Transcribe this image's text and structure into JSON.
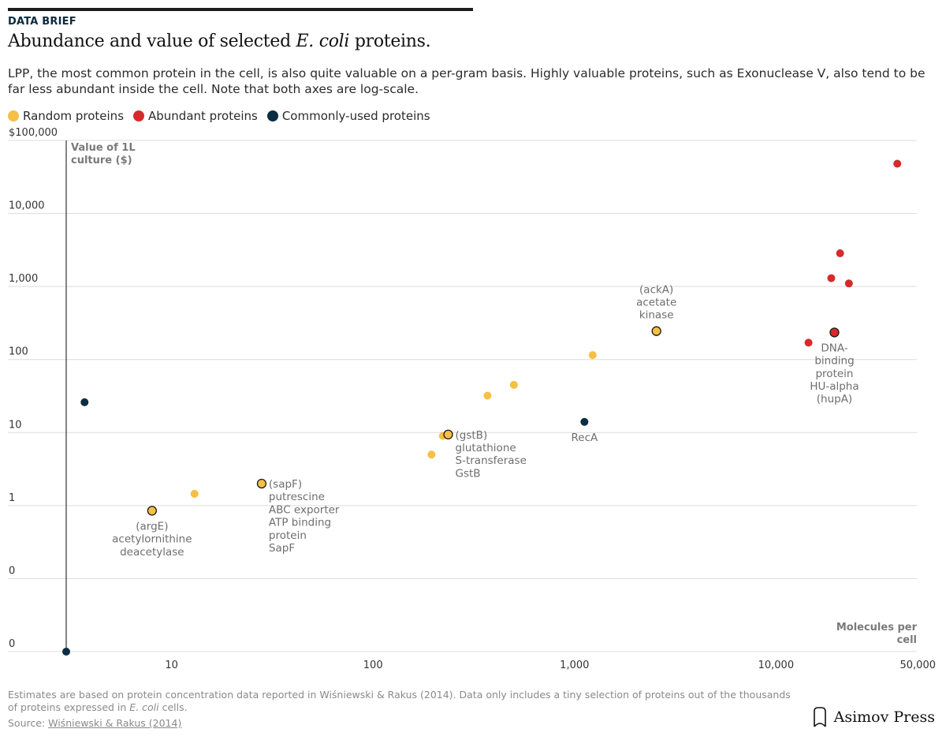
{
  "header": {
    "kicker": "DATA BRIEF",
    "title_pre": "Abundance and value of selected ",
    "title_em": "E. coli",
    "title_post": " proteins.",
    "subtitle": "LPP, the most common protein in the cell, is also quite valuable on a per-gram basis. Highly valuable proteins, such as Exonuclease V, also tend to be far less abundant inside the cell. Note that both axes are log-scale."
  },
  "legend": [
    {
      "label": "Random proteins",
      "color": "#f6bf45"
    },
    {
      "label": "Abundant proteins",
      "color": "#d62b2b"
    },
    {
      "label": "Commonly-used proteins",
      "color": "#0c2d42"
    }
  ],
  "chart_data": {
    "type": "scatter",
    "x_scale": "log",
    "y_scale": "log",
    "xlabel": "Molecules per cell",
    "ylabel": "Value of 1L culture ($)",
    "xlim": [
      3,
      50000
    ],
    "ylim": [
      0.01,
      100000
    ],
    "x_ticks": [
      {
        "value": 10,
        "label": "10"
      },
      {
        "value": 100,
        "label": "100"
      },
      {
        "value": 1000,
        "label": "1,000"
      },
      {
        "value": 10000,
        "label": "10,000"
      },
      {
        "value": 50000,
        "label": "50,000"
      }
    ],
    "y_ticks": [
      {
        "value": 100000,
        "label": "$100,000"
      },
      {
        "value": 10000,
        "label": "10,000"
      },
      {
        "value": 1000,
        "label": "1,000"
      },
      {
        "value": 100,
        "label": "100"
      },
      {
        "value": 10,
        "label": "10"
      },
      {
        "value": 1,
        "label": "1"
      },
      {
        "value": 0.1,
        "label": "0"
      },
      {
        "value": 0.01,
        "label": "0"
      }
    ],
    "series": [
      {
        "name": "Random proteins",
        "color": "#f6bf45",
        "points": [
          {
            "x": 8,
            "y": 0.85,
            "outlined": true,
            "label": [
              "(argE)",
              "acetylornithine",
              "deacetylase"
            ],
            "anchor": "below"
          },
          {
            "x": 13,
            "y": 1.45
          },
          {
            "x": 28,
            "y": 2.0,
            "outlined": true,
            "label": [
              "(sapF)",
              "putrescine",
              "ABC exporter",
              "ATP binding",
              "protein",
              "SapF"
            ],
            "anchor": "right"
          },
          {
            "x": 195,
            "y": 5.0
          },
          {
            "x": 222,
            "y": 9.0
          },
          {
            "x": 236,
            "y": 9.4,
            "outlined": true,
            "label": [
              "(gstB)",
              "glutathione",
              "S-transferase",
              "GstB"
            ],
            "anchor": "right"
          },
          {
            "x": 370,
            "y": 32
          },
          {
            "x": 500,
            "y": 45
          },
          {
            "x": 1230,
            "y": 115
          },
          {
            "x": 2550,
            "y": 245,
            "outlined": true,
            "label": [
              "(ackA)",
              "acetate",
              "kinase"
            ],
            "anchor": "above"
          }
        ]
      },
      {
        "name": "Abundant proteins",
        "color": "#d62b2b",
        "points": [
          {
            "x": 14500,
            "y": 170
          },
          {
            "x": 18800,
            "y": 1300
          },
          {
            "x": 19500,
            "y": 235,
            "outlined": true,
            "label": [
              "DNA-",
              "binding",
              "protein",
              "HU-alpha",
              "(hupA)"
            ],
            "anchor": "below"
          },
          {
            "x": 20800,
            "y": 2850
          },
          {
            "x": 23000,
            "y": 1100
          },
          {
            "x": 40000,
            "y": 48000
          }
        ]
      },
      {
        "name": "Commonly-used proteins",
        "color": "#0c2d42",
        "points": [
          {
            "x": 3.7,
            "y": 26
          },
          {
            "x": 1120,
            "y": 14,
            "label": [
              "RecA"
            ],
            "anchor": "below"
          },
          {
            "x": 3.0,
            "y": 0.01
          }
        ]
      }
    ]
  },
  "footer": {
    "note_pre": "Estimates are based on protein concentration data reported in Wiśniewski & Rakus (2014). Data only includes a tiny selection of proteins out of the thousands of proteins expressed in ",
    "note_em": "E. coli",
    "note_post": " cells.",
    "source_label": "Source: ",
    "source_link": "Wiśniewski & Rakus (2014)",
    "brand": "Asimov Press"
  }
}
